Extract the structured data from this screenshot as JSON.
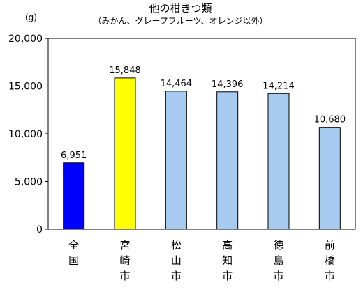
{
  "chart_data": {
    "type": "bar",
    "title": "他の柑きつ類",
    "subtitle": "（みかん、グレープフルーツ、オレンジ以外）",
    "unit_label": "(g)",
    "xlabel": "",
    "ylabel": "",
    "ylim": [
      0,
      20000
    ],
    "yticks": [
      0,
      5000,
      10000,
      15000,
      20000
    ],
    "ytick_labels": [
      "0",
      "5,000",
      "10,000",
      "15,000",
      "20,000"
    ],
    "grid": false,
    "categories": [
      "全国",
      "宮崎市",
      "松山市",
      "高知市",
      "徳島市",
      "前橋市"
    ],
    "values": [
      6951,
      15848,
      14464,
      14396,
      14214,
      10680
    ],
    "value_labels": [
      "6,951",
      "15,848",
      "14,464",
      "14,396",
      "14,214",
      "10,680"
    ],
    "colors": [
      "#0000ff",
      "#ffff00",
      "#a6caf0",
      "#a6caf0",
      "#a6caf0",
      "#a6caf0"
    ]
  }
}
